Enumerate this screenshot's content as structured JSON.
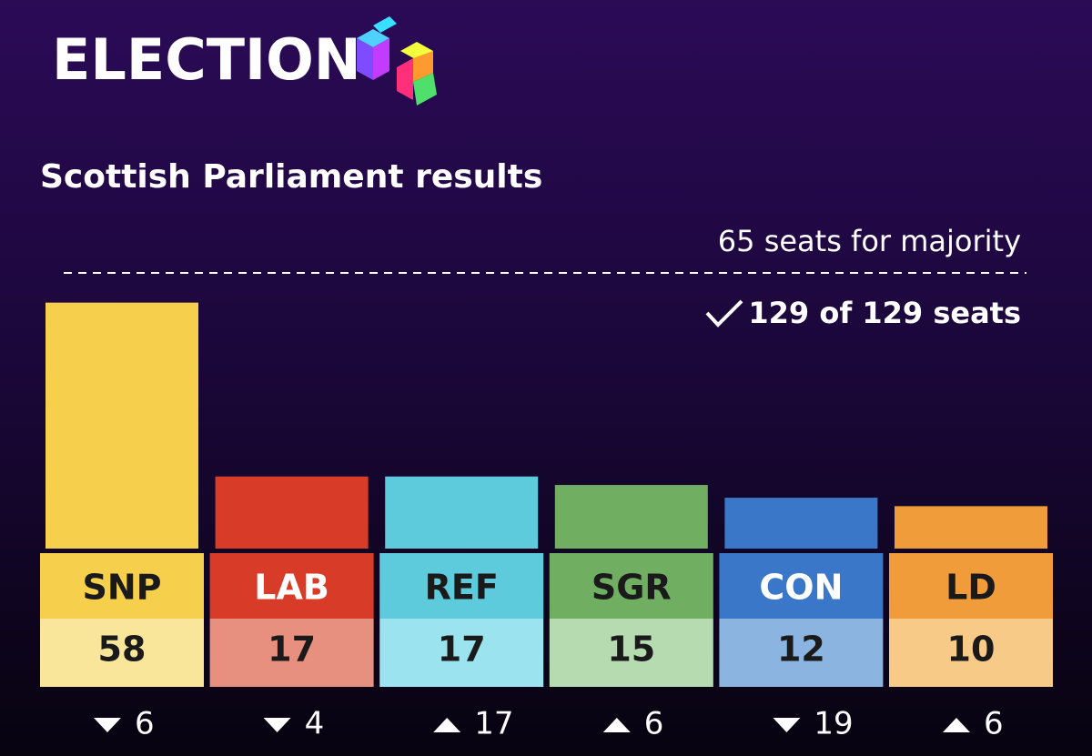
{
  "header": {
    "title": "ELECTION"
  },
  "chart_data": {
    "type": "bar",
    "title": "Scottish Parliament results",
    "majority": 65,
    "majority_label": "65 seats for majority",
    "seats_declared": "129 of 129 seats",
    "ylim": [
      0,
      65
    ],
    "categories": [
      "SNP",
      "LAB",
      "REF",
      "SGR",
      "CON",
      "LD"
    ],
    "values": [
      58,
      17,
      17,
      15,
      12,
      10
    ],
    "colors": [
      "#f6d04d",
      "#d83c28",
      "#5ecbdd",
      "#70ae62",
      "#3a77c8",
      "#f09c3a"
    ],
    "value_box_colors": [
      "#f9e69b",
      "#e8907f",
      "#9be3ee",
      "#b7dbb0",
      "#8bb4e0",
      "#f7cb87"
    ],
    "label_text_colors": [
      "#1a1a1a",
      "#ffffff",
      "#1a1a1a",
      "#1a1a1a",
      "#ffffff",
      "#1a1a1a"
    ],
    "changes": [
      6,
      4,
      17,
      6,
      19,
      6
    ],
    "change_directions": [
      "down",
      "down",
      "up",
      "up",
      "down",
      "up"
    ]
  }
}
